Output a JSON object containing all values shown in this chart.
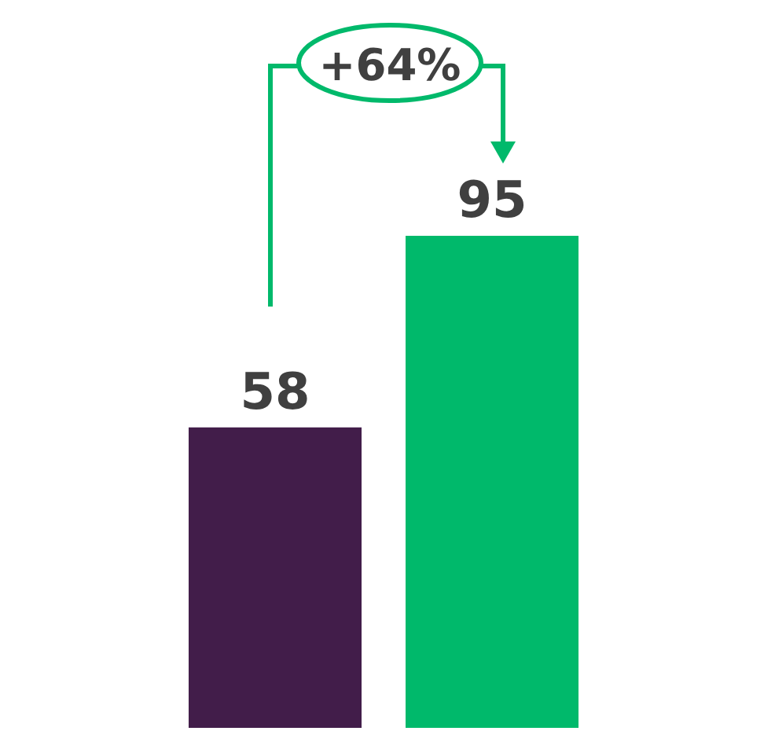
{
  "chart_data": {
    "type": "bar",
    "categories": [
      null,
      null
    ],
    "values": [
      58,
      95
    ],
    "colors": [
      "#421d4a",
      "#00b96b"
    ],
    "data_labels": true,
    "annotations": [
      "+64%"
    ]
  }
}
